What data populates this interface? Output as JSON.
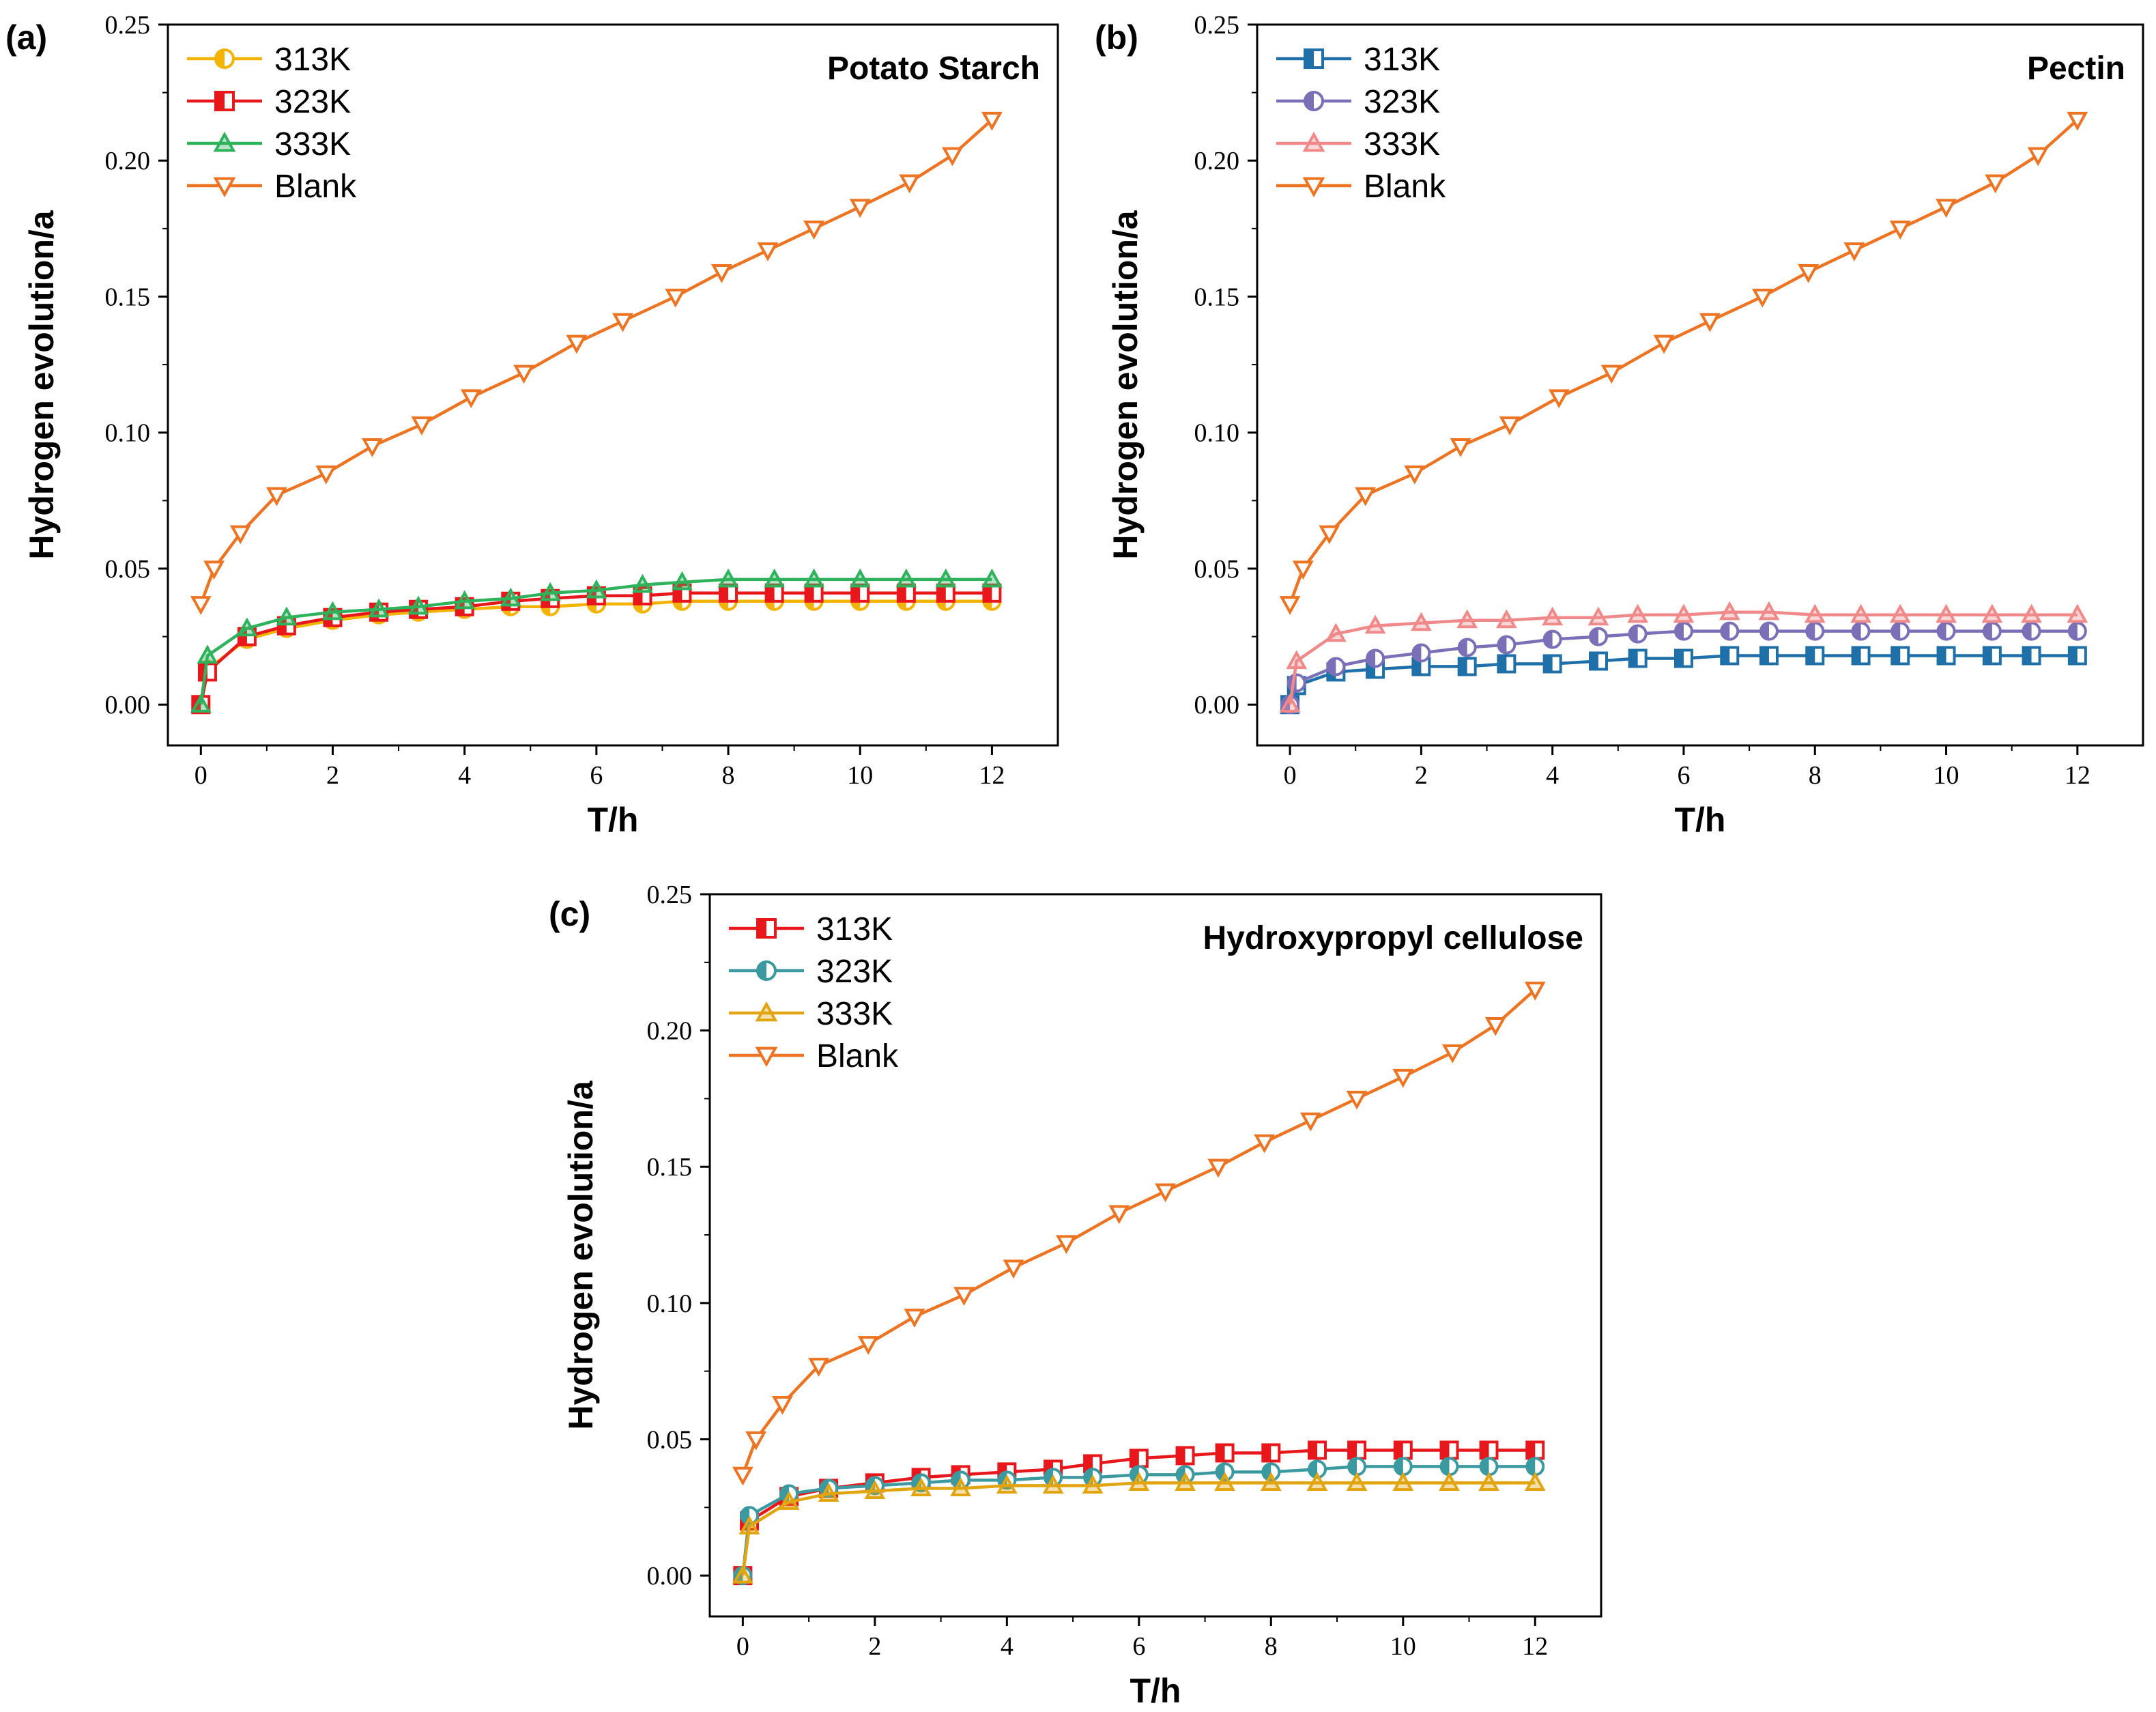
{
  "chart_data": [
    {
      "type": "line",
      "panel_label": "(a)",
      "title": "Potato Starch",
      "xlabel": "T/h",
      "ylabel": "Hydrogen evolution/a",
      "xlim": [
        -0.5,
        13
      ],
      "ylim": [
        -0.015,
        0.25
      ],
      "xticks": [
        "0",
        "2",
        "4",
        "6",
        "8",
        "10",
        "12"
      ],
      "yticks": [
        "0.00",
        "0.05",
        "0.10",
        "0.15",
        "0.20",
        "0.25"
      ],
      "legend_position": "top-left",
      "series": [
        {
          "name": "313K",
          "color": "#f2b400",
          "marker": "circle-half",
          "x": [
            0,
            0.1,
            0.7,
            1.3,
            2,
            2.7,
            3.3,
            4,
            4.7,
            5.3,
            6,
            6.7,
            7.3,
            8,
            8.7,
            9.3,
            10,
            10.7,
            11.3,
            12
          ],
          "y": [
            0,
            0.013,
            0.024,
            0.028,
            0.031,
            0.033,
            0.034,
            0.035,
            0.036,
            0.036,
            0.037,
            0.037,
            0.038,
            0.038,
            0.038,
            0.038,
            0.038,
            0.038,
            0.038,
            0.038
          ]
        },
        {
          "name": "323K",
          "color": "#e8171c",
          "marker": "square-half",
          "x": [
            0,
            0.1,
            0.7,
            1.3,
            2,
            2.7,
            3.3,
            4,
            4.7,
            5.3,
            6,
            6.7,
            7.3,
            8,
            8.7,
            9.3,
            10,
            10.7,
            11.3,
            12
          ],
          "y": [
            0,
            0.012,
            0.025,
            0.029,
            0.032,
            0.034,
            0.035,
            0.036,
            0.038,
            0.039,
            0.04,
            0.04,
            0.041,
            0.041,
            0.041,
            0.041,
            0.041,
            0.041,
            0.041,
            0.041
          ]
        },
        {
          "name": "333K",
          "color": "#2fb25c",
          "marker": "triangle-up",
          "x": [
            0,
            0.1,
            0.7,
            1.3,
            2,
            2.7,
            3.3,
            4,
            4.7,
            5.3,
            6,
            6.7,
            7.3,
            8,
            8.7,
            9.3,
            10,
            10.7,
            11.3,
            12
          ],
          "y": [
            0,
            0.018,
            0.028,
            0.032,
            0.034,
            0.035,
            0.036,
            0.038,
            0.039,
            0.041,
            0.042,
            0.044,
            0.045,
            0.046,
            0.046,
            0.046,
            0.046,
            0.046,
            0.046,
            0.046
          ]
        },
        {
          "name": "Blank",
          "color": "#ec7423",
          "marker": "triangle-down",
          "x": [
            0,
            0.2,
            0.6,
            1.15,
            1.9,
            2.6,
            3.35,
            4.1,
            4.9,
            5.7,
            6.4,
            7.2,
            7.9,
            8.6,
            9.3,
            10.0,
            10.75,
            11.4,
            12
          ],
          "y": [
            0.037,
            0.05,
            0.063,
            0.077,
            0.085,
            0.095,
            0.103,
            0.113,
            0.122,
            0.133,
            0.141,
            0.15,
            0.159,
            0.167,
            0.175,
            0.183,
            0.192,
            0.202,
            0.215
          ]
        }
      ]
    },
    {
      "type": "line",
      "panel_label": "(b)",
      "title": "Pectin",
      "xlabel": "T/h",
      "ylabel": "Hydrogen evolution/a",
      "xlim": [
        -0.5,
        13
      ],
      "ylim": [
        -0.015,
        0.25
      ],
      "xticks": [
        "0",
        "2",
        "4",
        "6",
        "8",
        "10",
        "12"
      ],
      "yticks": [
        "0.00",
        "0.05",
        "0.10",
        "0.15",
        "0.20",
        "0.25"
      ],
      "legend_position": "top-left",
      "series": [
        {
          "name": "313K",
          "color": "#1f6fa8",
          "marker": "square-half",
          "x": [
            0,
            0.1,
            0.7,
            1.3,
            2,
            2.7,
            3.3,
            4,
            4.7,
            5.3,
            6,
            6.7,
            7.3,
            8,
            8.7,
            9.3,
            10,
            10.7,
            11.3,
            12
          ],
          "y": [
            0,
            0.007,
            0.012,
            0.013,
            0.014,
            0.014,
            0.015,
            0.015,
            0.016,
            0.017,
            0.017,
            0.018,
            0.018,
            0.018,
            0.018,
            0.018,
            0.018,
            0.018,
            0.018,
            0.018
          ]
        },
        {
          "name": "323K",
          "color": "#7b6fb8",
          "marker": "circle-half",
          "x": [
            0,
            0.1,
            0.7,
            1.3,
            2,
            2.7,
            3.3,
            4,
            4.7,
            5.3,
            6,
            6.7,
            7.3,
            8,
            8.7,
            9.3,
            10,
            10.7,
            11.3,
            12
          ],
          "y": [
            0,
            0.008,
            0.014,
            0.017,
            0.019,
            0.021,
            0.022,
            0.024,
            0.025,
            0.026,
            0.027,
            0.027,
            0.027,
            0.027,
            0.027,
            0.027,
            0.027,
            0.027,
            0.027,
            0.027
          ]
        },
        {
          "name": "333K",
          "color": "#f08a8a",
          "marker": "triangle-up",
          "x": [
            0,
            0.1,
            0.7,
            1.3,
            2,
            2.7,
            3.3,
            4,
            4.7,
            5.3,
            6,
            6.7,
            7.3,
            8,
            8.7,
            9.3,
            10,
            10.7,
            11.3,
            12
          ],
          "y": [
            0,
            0.016,
            0.026,
            0.029,
            0.03,
            0.031,
            0.031,
            0.032,
            0.032,
            0.033,
            0.033,
            0.034,
            0.034,
            0.033,
            0.033,
            0.033,
            0.033,
            0.033,
            0.033,
            0.033
          ]
        },
        {
          "name": "Blank",
          "color": "#ec7423",
          "marker": "triangle-down",
          "x": [
            0,
            0.2,
            0.6,
            1.15,
            1.9,
            2.6,
            3.35,
            4.1,
            4.9,
            5.7,
            6.4,
            7.2,
            7.9,
            8.6,
            9.3,
            10.0,
            10.75,
            11.4,
            12
          ],
          "y": [
            0.037,
            0.05,
            0.063,
            0.077,
            0.085,
            0.095,
            0.103,
            0.113,
            0.122,
            0.133,
            0.141,
            0.15,
            0.159,
            0.167,
            0.175,
            0.183,
            0.192,
            0.202,
            0.215
          ]
        }
      ]
    },
    {
      "type": "line",
      "panel_label": "(c)",
      "title": "Hydroxypropyl cellulose",
      "xlabel": "T/h",
      "ylabel": "Hydrogen evolution/a",
      "xlim": [
        -0.5,
        13
      ],
      "ylim": [
        -0.015,
        0.25
      ],
      "xticks": [
        "0",
        "2",
        "4",
        "6",
        "8",
        "10",
        "12"
      ],
      "yticks": [
        "0.00",
        "0.05",
        "0.10",
        "0.15",
        "0.20",
        "0.25"
      ],
      "legend_position": "top-left",
      "series": [
        {
          "name": "313K",
          "color": "#e8171c",
          "marker": "square-half",
          "x": [
            0,
            0.1,
            0.7,
            1.3,
            2,
            2.7,
            3.3,
            4,
            4.7,
            5.3,
            6,
            6.7,
            7.3,
            8,
            8.7,
            9.3,
            10,
            10.7,
            11.3,
            12
          ],
          "y": [
            0,
            0.02,
            0.029,
            0.032,
            0.034,
            0.036,
            0.037,
            0.038,
            0.039,
            0.041,
            0.043,
            0.044,
            0.045,
            0.045,
            0.046,
            0.046,
            0.046,
            0.046,
            0.046,
            0.046
          ]
        },
        {
          "name": "323K",
          "color": "#3a9aa0",
          "marker": "circle-half",
          "x": [
            0,
            0.1,
            0.7,
            1.3,
            2,
            2.7,
            3.3,
            4,
            4.7,
            5.3,
            6,
            6.7,
            7.3,
            8,
            8.7,
            9.3,
            10,
            10.7,
            11.3,
            12
          ],
          "y": [
            0,
            0.022,
            0.03,
            0.032,
            0.033,
            0.034,
            0.035,
            0.035,
            0.036,
            0.036,
            0.037,
            0.037,
            0.038,
            0.038,
            0.039,
            0.04,
            0.04,
            0.04,
            0.04,
            0.04
          ]
        },
        {
          "name": "333K",
          "color": "#e2a512",
          "marker": "triangle-up",
          "x": [
            0,
            0.1,
            0.7,
            1.3,
            2,
            2.7,
            3.3,
            4,
            4.7,
            5.3,
            6,
            6.7,
            7.3,
            8,
            8.7,
            9.3,
            10,
            10.7,
            11.3,
            12
          ],
          "y": [
            0,
            0.018,
            0.027,
            0.03,
            0.031,
            0.032,
            0.032,
            0.033,
            0.033,
            0.033,
            0.034,
            0.034,
            0.034,
            0.034,
            0.034,
            0.034,
            0.034,
            0.034,
            0.034,
            0.034
          ]
        },
        {
          "name": "Blank",
          "color": "#ec7423",
          "marker": "triangle-down",
          "x": [
            0,
            0.2,
            0.6,
            1.15,
            1.9,
            2.6,
            3.35,
            4.1,
            4.9,
            5.7,
            6.4,
            7.2,
            7.9,
            8.6,
            9.3,
            10.0,
            10.75,
            11.4,
            12
          ],
          "y": [
            0.037,
            0.05,
            0.063,
            0.077,
            0.085,
            0.095,
            0.103,
            0.113,
            0.122,
            0.133,
            0.141,
            0.15,
            0.159,
            0.167,
            0.175,
            0.183,
            0.192,
            0.202,
            0.215
          ]
        }
      ]
    }
  ]
}
